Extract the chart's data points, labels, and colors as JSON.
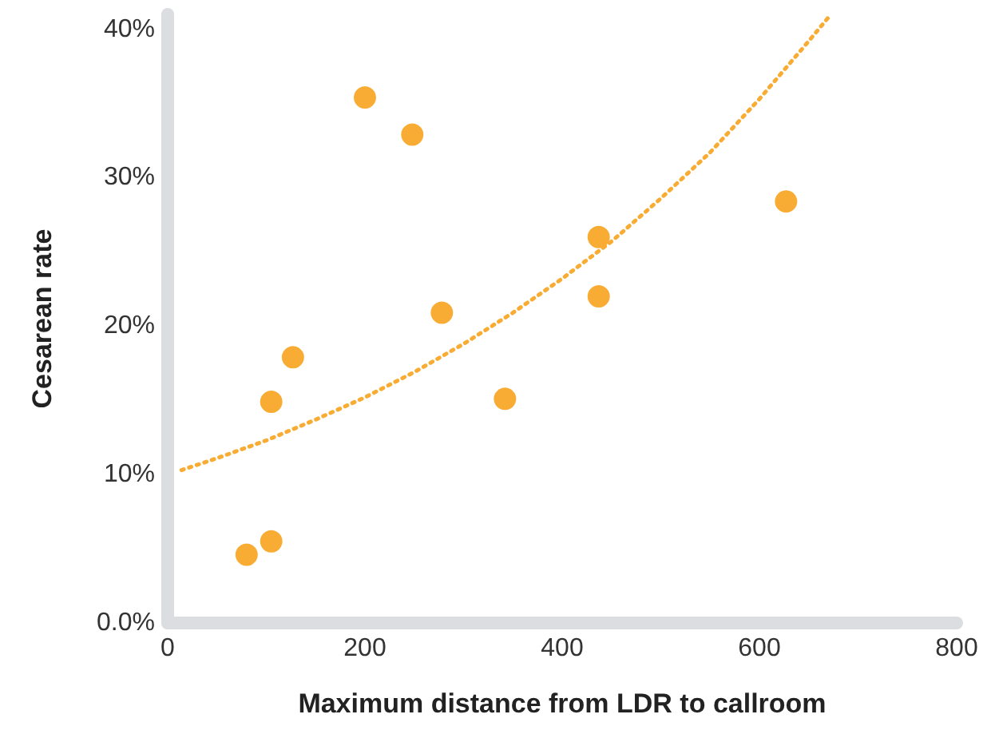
{
  "chart_data": {
    "type": "scatter",
    "xlabel": "Maximum distance from LDR to callroom",
    "ylabel": "Cesarean rate",
    "xlim": [
      0,
      800
    ],
    "xticks": [
      0,
      200,
      400,
      600,
      800
    ],
    "ylim": [
      0,
      41
    ],
    "yticks": [
      {
        "value": 0,
        "label": "0.0%"
      },
      {
        "value": 10,
        "label": "10%"
      },
      {
        "value": 20,
        "label": "20%"
      },
      {
        "value": 30,
        "label": "30%"
      },
      {
        "value": 40,
        "label": "40%"
      }
    ],
    "grid": false,
    "marker": "circle",
    "series": [
      {
        "color": "#f9ac33",
        "x": [
          80,
          105,
          105,
          127,
          200,
          248,
          278,
          342,
          437,
          437,
          627
        ],
        "values": [
          4.6,
          5.5,
          14.9,
          17.9,
          35.4,
          32.9,
          20.9,
          15.1,
          26.0,
          22.0,
          28.4
        ]
      },
      {
        "type": "line",
        "color": "#f9ac33",
        "line_style": "dotted",
        "marker": "none",
        "x": [
          14,
          50,
          100,
          150,
          200,
          250,
          300,
          350,
          400,
          450,
          500,
          550,
          600,
          650,
          670
        ],
        "values": [
          10.3,
          11.1,
          12.3,
          13.7,
          15.2,
          16.9,
          18.8,
          20.9,
          23.2,
          25.7,
          28.6,
          31.7,
          35.3,
          39.2,
          40.8
        ]
      }
    ]
  }
}
